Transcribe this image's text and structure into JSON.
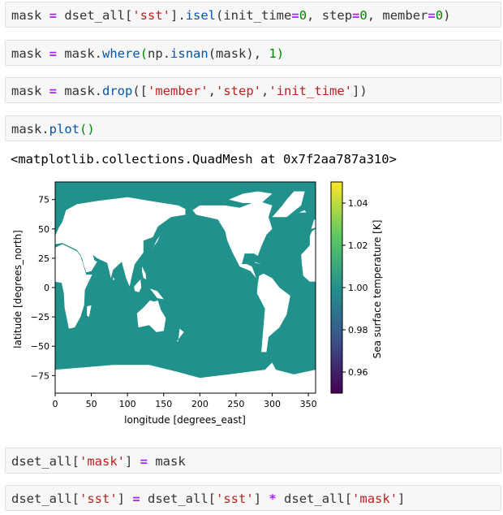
{
  "cells": [
    {
      "tokens": [
        {
          "t": "mask",
          "c": "plain"
        },
        {
          "t": " ",
          "c": "plain"
        },
        {
          "t": "=",
          "c": "op"
        },
        {
          "t": " dset_all[",
          "c": "plain"
        },
        {
          "t": "'sst'",
          "c": "str"
        },
        {
          "t": "].",
          "c": "plain"
        },
        {
          "t": "isel",
          "c": "fn"
        },
        {
          "t": "(init_time",
          "c": "plain"
        },
        {
          "t": "=",
          "c": "op"
        },
        {
          "t": "0",
          "c": "num"
        },
        {
          "t": ", step",
          "c": "plain"
        },
        {
          "t": "=",
          "c": "op"
        },
        {
          "t": "0",
          "c": "num"
        },
        {
          "t": ", member",
          "c": "plain"
        },
        {
          "t": "=",
          "c": "op"
        },
        {
          "t": "0",
          "c": "num"
        },
        {
          "t": ")",
          "c": "plain"
        }
      ]
    },
    {
      "tokens": [
        {
          "t": "mask",
          "c": "plain"
        },
        {
          "t": " ",
          "c": "plain"
        },
        {
          "t": "=",
          "c": "op"
        },
        {
          "t": " mask.",
          "c": "plain"
        },
        {
          "t": "where",
          "c": "fn"
        },
        {
          "t": "(",
          "c": "paren"
        },
        {
          "t": "np.",
          "c": "plain"
        },
        {
          "t": "isnan",
          "c": "fn"
        },
        {
          "t": "(mask), ",
          "c": "plain"
        },
        {
          "t": "1",
          "c": "num"
        },
        {
          "t": ")",
          "c": "paren"
        }
      ]
    },
    {
      "tokens": [
        {
          "t": "mask",
          "c": "plain"
        },
        {
          "t": " ",
          "c": "plain"
        },
        {
          "t": "=",
          "c": "op"
        },
        {
          "t": " mask.",
          "c": "plain"
        },
        {
          "t": "drop",
          "c": "fn"
        },
        {
          "t": "([",
          "c": "plain"
        },
        {
          "t": "'member'",
          "c": "str"
        },
        {
          "t": ",",
          "c": "plain"
        },
        {
          "t": "'step'",
          "c": "str"
        },
        {
          "t": ",",
          "c": "plain"
        },
        {
          "t": "'init_time'",
          "c": "str"
        },
        {
          "t": "])",
          "c": "plain"
        }
      ]
    },
    {
      "tokens": [
        {
          "t": "mask.",
          "c": "plain"
        },
        {
          "t": "plot",
          "c": "fn"
        },
        {
          "t": "()",
          "c": "paren"
        }
      ]
    },
    {
      "tokens": [
        {
          "t": "dset_all[",
          "c": "plain"
        },
        {
          "t": "'mask'",
          "c": "str"
        },
        {
          "t": "] ",
          "c": "plain"
        },
        {
          "t": "=",
          "c": "op"
        },
        {
          "t": " mask",
          "c": "plain"
        }
      ]
    },
    {
      "tokens": [
        {
          "t": "dset_all[",
          "c": "plain"
        },
        {
          "t": "'sst'",
          "c": "str"
        },
        {
          "t": "] ",
          "c": "plain"
        },
        {
          "t": "=",
          "c": "op"
        },
        {
          "t": " dset_all[",
          "c": "plain"
        },
        {
          "t": "'sst'",
          "c": "str"
        },
        {
          "t": "] ",
          "c": "plain"
        },
        {
          "t": "*",
          "c": "op"
        },
        {
          "t": " dset_all[",
          "c": "plain"
        },
        {
          "t": "'mask'",
          "c": "str"
        },
        {
          "t": "]",
          "c": "plain"
        }
      ]
    }
  ],
  "output_text": "<matplotlib.collections.QuadMesh at 0x7f2aa787a310>",
  "colors": {
    "ocean": "#21918c",
    "land": "#ffffff",
    "cell_bg": "#f7f7f7",
    "colorbar": [
      "#440154",
      "#3b528b",
      "#21918c",
      "#5ec962",
      "#fde725"
    ]
  },
  "chart_data": {
    "type": "heatmap",
    "xlabel": "longitude [degrees_east]",
    "ylabel": "latitude [degrees_north]",
    "xlim": [
      0,
      360
    ],
    "ylim": [
      -90,
      90
    ],
    "xticks": [
      0,
      50,
      100,
      150,
      200,
      250,
      300,
      350
    ],
    "yticks": [
      75,
      50,
      25,
      0,
      -25,
      -50,
      -75
    ],
    "ytick_labels": [
      "75",
      "50",
      "25",
      "0",
      "−25",
      "−50",
      "−75"
    ],
    "value_ocean": 1.0,
    "colorbar": {
      "label": "Sea surface temperature [K]",
      "range": [
        0.95,
        1.05
      ],
      "ticks": [
        1.04,
        1.02,
        1.0,
        0.98,
        0.96
      ],
      "tick_labels": [
        "1.04",
        "1.02",
        "1.00",
        "0.98",
        "0.96"
      ]
    },
    "land_regions": [
      {
        "name": "Antarctica",
        "lonlat": [
          [
            0,
            -70
          ],
          [
            40,
            -68
          ],
          [
            80,
            -66
          ],
          [
            130,
            -66
          ],
          [
            170,
            -72
          ],
          [
            200,
            -77
          ],
          [
            240,
            -74
          ],
          [
            290,
            -70
          ],
          [
            300,
            -64
          ],
          [
            305,
            -70
          ],
          [
            330,
            -74
          ],
          [
            360,
            -70
          ],
          [
            360,
            -90
          ],
          [
            0,
            -90
          ]
        ]
      },
      {
        "name": "Africa",
        "lonlat": [
          [
            0,
            34
          ],
          [
            10,
            37
          ],
          [
            30,
            31
          ],
          [
            35,
            27
          ],
          [
            43,
            11
          ],
          [
            51,
            11
          ],
          [
            41,
            -2
          ],
          [
            40,
            -15
          ],
          [
            35,
            -25
          ],
          [
            27,
            -34
          ],
          [
            19,
            -35
          ],
          [
            13,
            -17
          ],
          [
            12,
            -5
          ],
          [
            9,
            4
          ],
          [
            0,
            5
          ]
        ]
      },
      {
        "name": "Africa-west",
        "lonlat": [
          [
            340,
            28
          ],
          [
            352,
            36
          ],
          [
            360,
            36
          ],
          [
            360,
            5
          ],
          [
            352,
            5
          ],
          [
            343,
            10
          ],
          [
            341,
            20
          ]
        ]
      },
      {
        "name": "Eurasia",
        "lonlat": [
          [
            0,
            44
          ],
          [
            5,
            51
          ],
          [
            10,
            56
          ],
          [
            15,
            66
          ],
          [
            30,
            71
          ],
          [
            60,
            74
          ],
          [
            100,
            77
          ],
          [
            140,
            73
          ],
          [
            170,
            70
          ],
          [
            180,
            67
          ],
          [
            180,
            62
          ],
          [
            160,
            60
          ],
          [
            142,
            52
          ],
          [
            135,
            43
          ],
          [
            122,
            40
          ],
          [
            122,
            30
          ],
          [
            110,
            20
          ],
          [
            106,
            10
          ],
          [
            103,
            1
          ],
          [
            98,
            8
          ],
          [
            92,
            22
          ],
          [
            80,
            15
          ],
          [
            77,
            8
          ],
          [
            72,
            21
          ],
          [
            58,
            25
          ],
          [
            52,
            28
          ],
          [
            55,
            22
          ],
          [
            45,
            13
          ],
          [
            35,
            28
          ],
          [
            30,
            32
          ],
          [
            10,
            38
          ],
          [
            0,
            37
          ]
        ]
      },
      {
        "name": "Europe-west",
        "lonlat": [
          [
            352,
            36
          ],
          [
            352,
            44
          ],
          [
            355,
            48
          ],
          [
            360,
            50
          ],
          [
            360,
            36
          ]
        ]
      },
      {
        "name": "Arabia-gap",
        "lonlat": [
          [
            38,
            28
          ],
          [
            52,
            24
          ],
          [
            58,
            22
          ],
          [
            50,
            14
          ],
          [
            43,
            13
          ],
          [
            38,
            22
          ]
        ]
      },
      {
        "name": "Britain",
        "lonlat": [
          [
            354,
            50
          ],
          [
            358,
            58
          ],
          [
            360,
            58
          ],
          [
            360,
            51
          ]
        ]
      },
      {
        "name": "Greenland",
        "lonlat": [
          [
            300,
            60
          ],
          [
            314,
            70
          ],
          [
            320,
            75
          ],
          [
            330,
            82
          ],
          [
            345,
            82
          ],
          [
            340,
            70
          ],
          [
            320,
            60
          ]
        ]
      },
      {
        "name": "North America",
        "lonlat": [
          [
            190,
            66
          ],
          [
            200,
            70
          ],
          [
            235,
            70
          ],
          [
            255,
            68
          ],
          [
            280,
            74
          ],
          [
            300,
            70
          ],
          [
            295,
            60
          ],
          [
            300,
            50
          ],
          [
            292,
            45
          ],
          [
            285,
            35
          ],
          [
            280,
            27
          ],
          [
            275,
            29
          ],
          [
            262,
            29
          ],
          [
            258,
            20
          ],
          [
            265,
            20
          ],
          [
            272,
            18
          ],
          [
            278,
            8
          ],
          [
            270,
            14
          ],
          [
            255,
            18
          ],
          [
            245,
            30
          ],
          [
            238,
            40
          ],
          [
            235,
            48
          ],
          [
            225,
            58
          ],
          [
            210,
            60
          ],
          [
            195,
            62
          ]
        ]
      },
      {
        "name": "South America",
        "lonlat": [
          [
            282,
            10
          ],
          [
            288,
            12
          ],
          [
            300,
            8
          ],
          [
            310,
            0
          ],
          [
            325,
            -7
          ],
          [
            320,
            -23
          ],
          [
            310,
            -34
          ],
          [
            295,
            -42
          ],
          [
            292,
            -55
          ],
          [
            285,
            -55
          ],
          [
            287,
            -40
          ],
          [
            290,
            -18
          ],
          [
            279,
            -5
          ],
          [
            280,
            3
          ]
        ]
      },
      {
        "name": "Australia",
        "lonlat": [
          [
            113,
            -22
          ],
          [
            122,
            -17
          ],
          [
            131,
            -11
          ],
          [
            137,
            -12
          ],
          [
            142,
            -11
          ],
          [
            146,
            -19
          ],
          [
            153,
            -26
          ],
          [
            150,
            -37
          ],
          [
            140,
            -38
          ],
          [
            130,
            -32
          ],
          [
            115,
            -34
          ]
        ]
      },
      {
        "name": "Borneo",
        "lonlat": [
          [
            109,
            1
          ],
          [
            118,
            7
          ],
          [
            119,
            0
          ],
          [
            116,
            -4
          ],
          [
            110,
            -3
          ]
        ]
      },
      {
        "name": "Sumatra",
        "lonlat": [
          [
            95,
            5
          ],
          [
            105,
            -5
          ],
          [
            106,
            -6
          ],
          [
            100,
            0
          ]
        ]
      },
      {
        "name": "NewGuinea",
        "lonlat": [
          [
            131,
            -1
          ],
          [
            141,
            -3
          ],
          [
            150,
            -10
          ],
          [
            141,
            -9
          ],
          [
            135,
            -4
          ]
        ]
      },
      {
        "name": "Madagascar",
        "lonlat": [
          [
            44,
            -16
          ],
          [
            50,
            -15
          ],
          [
            47,
            -25
          ],
          [
            44,
            -24
          ]
        ]
      },
      {
        "name": "Japan",
        "lonlat": [
          [
            130,
            31
          ],
          [
            136,
            35
          ],
          [
            141,
            41
          ],
          [
            145,
            44
          ],
          [
            140,
            38
          ],
          [
            133,
            33
          ]
        ]
      },
      {
        "name": "NewZealand",
        "lonlat": [
          [
            172,
            -35
          ],
          [
            178,
            -38
          ],
          [
            174,
            -41
          ],
          [
            168,
            -46
          ],
          [
            170,
            -46
          ]
        ]
      },
      {
        "name": "ArcticIslands",
        "lonlat": [
          [
            240,
            75
          ],
          [
            260,
            80
          ],
          [
            280,
            82
          ],
          [
            300,
            80
          ],
          [
            285,
            72
          ],
          [
            260,
            72
          ]
        ]
      },
      {
        "name": "Iceland",
        "lonlat": [
          [
            337,
            64
          ],
          [
            345,
            66
          ],
          [
            347,
            64
          ]
        ]
      },
      {
        "name": "Cuba",
        "lonlat": [
          [
            275,
            22
          ],
          [
            285,
            20
          ],
          [
            277,
            21
          ]
        ]
      },
      {
        "name": "Philippines",
        "lonlat": [
          [
            120,
            18
          ],
          [
            125,
            12
          ],
          [
            126,
            7
          ],
          [
            122,
            8
          ],
          [
            120,
            14
          ]
        ]
      },
      {
        "name": "SriLanka",
        "lonlat": [
          [
            80,
            9
          ],
          [
            82,
            7
          ],
          [
            80,
            6
          ]
        ]
      }
    ]
  }
}
